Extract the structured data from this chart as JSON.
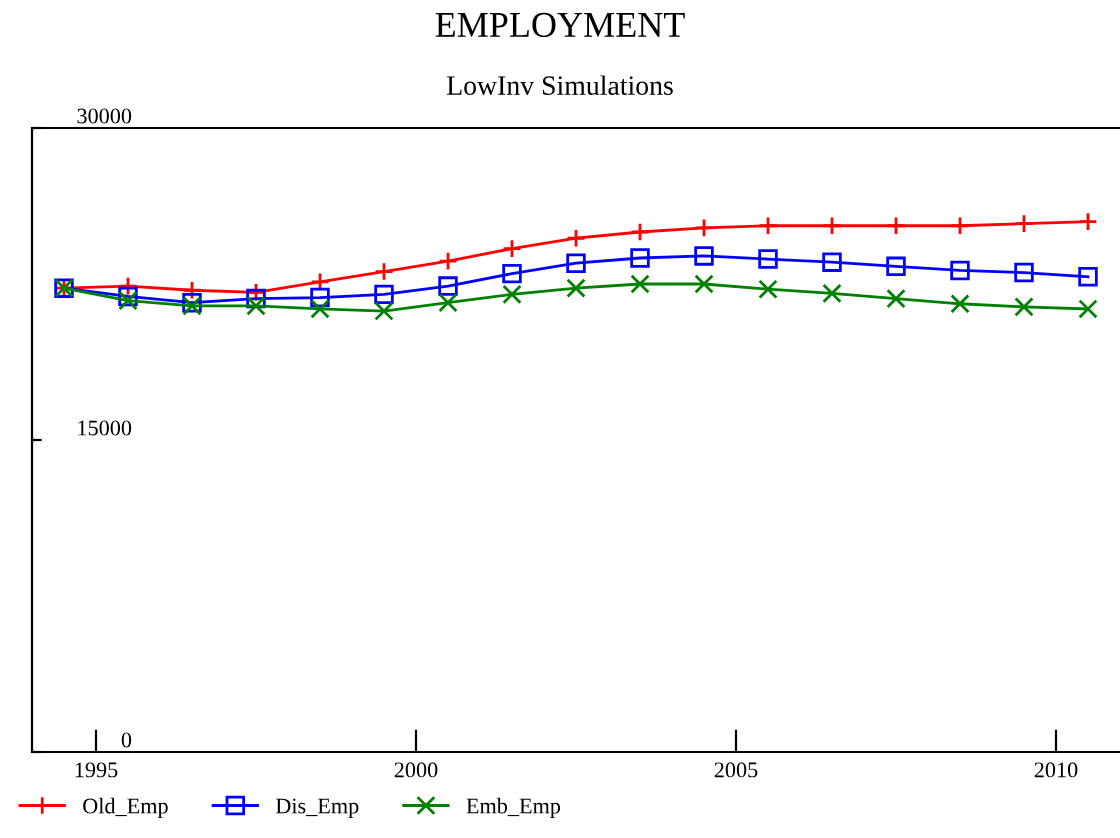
{
  "chart_data": {
    "type": "line",
    "title": "EMPLOYMENT",
    "subtitle": "LowInv Simulations",
    "x": [
      1994.5,
      1995.5,
      1996.5,
      1997.5,
      1998.5,
      1999.5,
      2000.5,
      2001.5,
      2002.5,
      2003.5,
      2004.5,
      2005.5,
      2006.5,
      2007.5,
      2008.5,
      2009.5,
      2010.5
    ],
    "series": [
      {
        "name": "Old_Emp",
        "color": "#ff0000",
        "marker": "plus",
        "values": [
          22300,
          22400,
          22200,
          22100,
          22600,
          23100,
          23600,
          24200,
          24700,
          25000,
          25200,
          25300,
          25300,
          25300,
          25300,
          25400,
          25500
        ]
      },
      {
        "name": "Dis_Emp",
        "color": "#0000ff",
        "marker": "square",
        "values": [
          22300,
          21900,
          21600,
          21800,
          21850,
          22000,
          22400,
          23000,
          23500,
          23750,
          23850,
          23700,
          23550,
          23350,
          23150,
          23050,
          22850
        ]
      },
      {
        "name": "Emb_Emp",
        "color": "#008000",
        "marker": "cross",
        "values": [
          22300,
          21700,
          21450,
          21450,
          21300,
          21200,
          21600,
          22000,
          22300,
          22500,
          22500,
          22250,
          22050,
          21800,
          21550,
          21400,
          21300
        ]
      }
    ],
    "xlim": [
      1994,
      2011
    ],
    "xticks": [
      1995,
      2000,
      2005,
      2010
    ],
    "ylim": [
      0,
      30000
    ],
    "yticks": [
      0,
      15000,
      30000
    ],
    "grid": false,
    "legend": "bottom left"
  }
}
